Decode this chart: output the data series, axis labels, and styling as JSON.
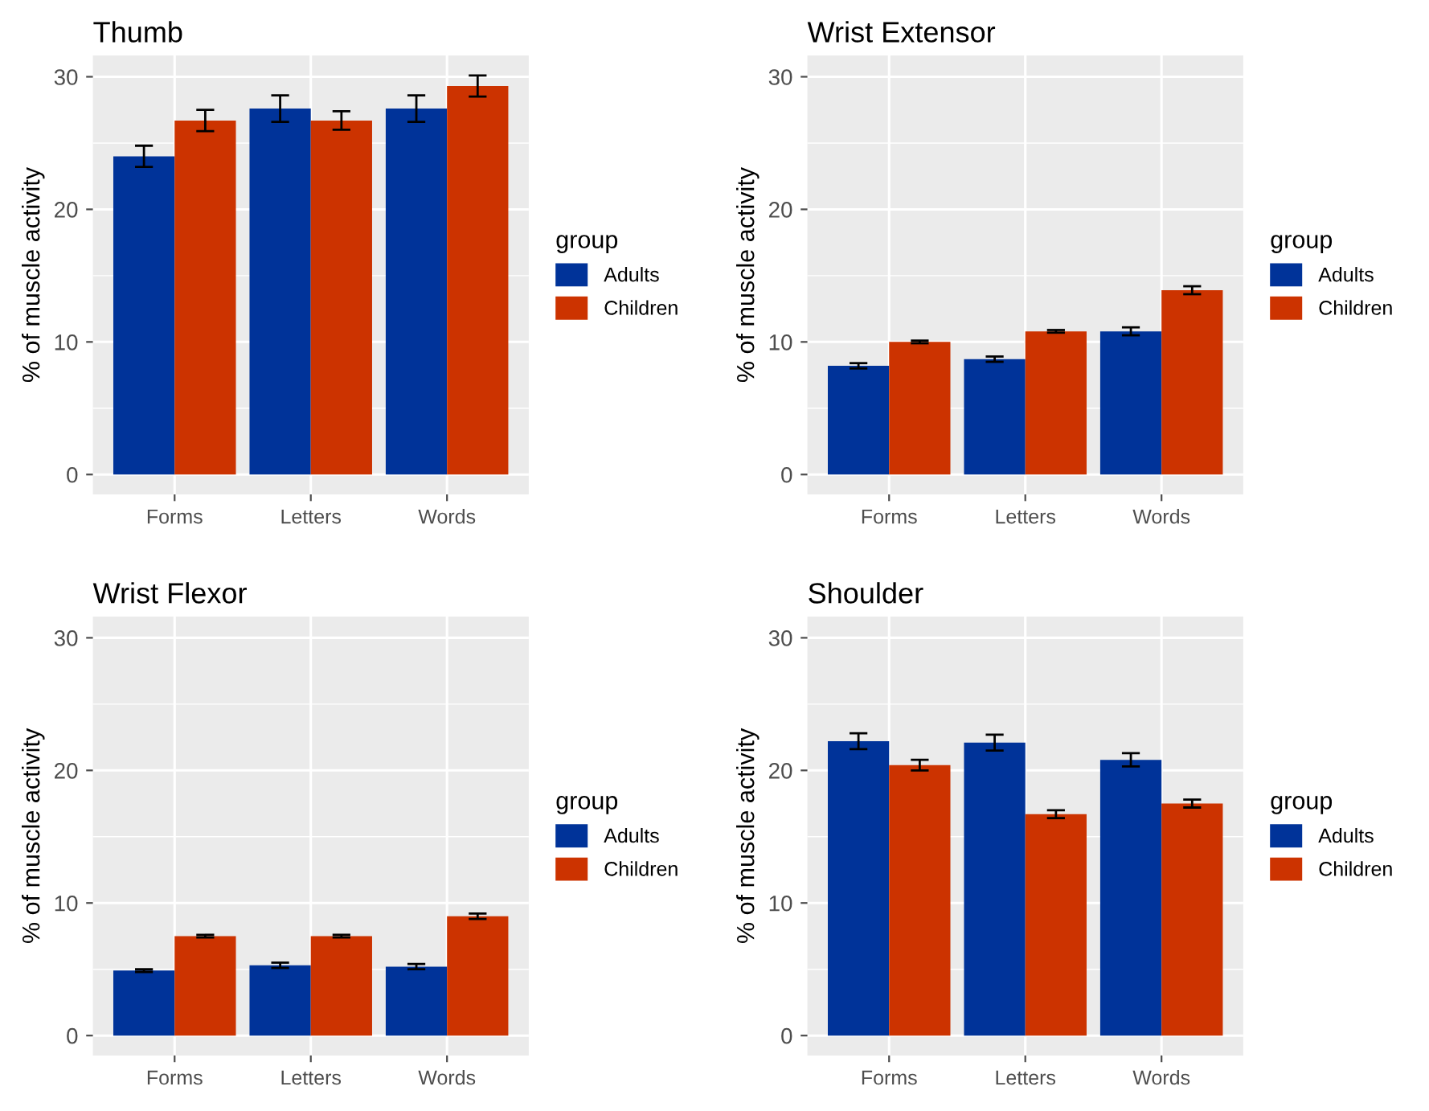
{
  "chart_data": [
    {
      "type": "bar",
      "title": "Thumb",
      "ylabel": "% of muscle activity",
      "legend_title": "group",
      "categories": [
        "Forms",
        "Letters",
        "Words"
      ],
      "ylim": [
        -1.5,
        31.6
      ],
      "yticks": [
        0,
        10,
        20,
        30
      ],
      "grid": true,
      "legend": "right",
      "series": [
        {
          "name": "Adults",
          "color": "#003399",
          "values": [
            24.0,
            27.6,
            27.6
          ],
          "errors": [
            0.8,
            1.0,
            1.0
          ]
        },
        {
          "name": "Children",
          "color": "#cc3300",
          "values": [
            26.7,
            26.7,
            29.3
          ],
          "errors": [
            0.8,
            0.7,
            0.8
          ]
        }
      ]
    },
    {
      "type": "bar",
      "title": "Wrist Extensor",
      "ylabel": "% of muscle activity",
      "legend_title": "group",
      "categories": [
        "Forms",
        "Letters",
        "Words"
      ],
      "ylim": [
        -1.5,
        31.6
      ],
      "yticks": [
        0,
        10,
        20,
        30
      ],
      "grid": true,
      "legend": "right",
      "series": [
        {
          "name": "Adults",
          "color": "#003399",
          "values": [
            8.2,
            8.7,
            10.8
          ],
          "errors": [
            0.2,
            0.2,
            0.3
          ]
        },
        {
          "name": "Children",
          "color": "#cc3300",
          "values": [
            10.0,
            10.8,
            13.9
          ],
          "errors": [
            0.1,
            0.1,
            0.3
          ]
        }
      ]
    },
    {
      "type": "bar",
      "title": "Wrist Flexor",
      "ylabel": "% of muscle activity",
      "legend_title": "group",
      "categories": [
        "Forms",
        "Letters",
        "Words"
      ],
      "ylim": [
        -1.5,
        31.6
      ],
      "yticks": [
        0,
        10,
        20,
        30
      ],
      "grid": true,
      "legend": "right",
      "series": [
        {
          "name": "Adults",
          "color": "#003399",
          "values": [
            4.9,
            5.3,
            5.2
          ],
          "errors": [
            0.1,
            0.2,
            0.2
          ]
        },
        {
          "name": "Children",
          "color": "#cc3300",
          "values": [
            7.5,
            7.5,
            9.0
          ],
          "errors": [
            0.1,
            0.1,
            0.2
          ]
        }
      ]
    },
    {
      "type": "bar",
      "title": "Shoulder",
      "ylabel": "% of muscle activity",
      "legend_title": "group",
      "categories": [
        "Forms",
        "Letters",
        "Words"
      ],
      "ylim": [
        -1.5,
        31.6
      ],
      "yticks": [
        0,
        10,
        20,
        30
      ],
      "grid": true,
      "legend": "right",
      "series": [
        {
          "name": "Adults",
          "color": "#003399",
          "values": [
            22.2,
            22.1,
            20.8
          ],
          "errors": [
            0.6,
            0.6,
            0.5
          ]
        },
        {
          "name": "Children",
          "color": "#cc3300",
          "values": [
            20.4,
            16.7,
            17.5
          ],
          "errors": [
            0.4,
            0.3,
            0.3
          ]
        }
      ]
    }
  ]
}
